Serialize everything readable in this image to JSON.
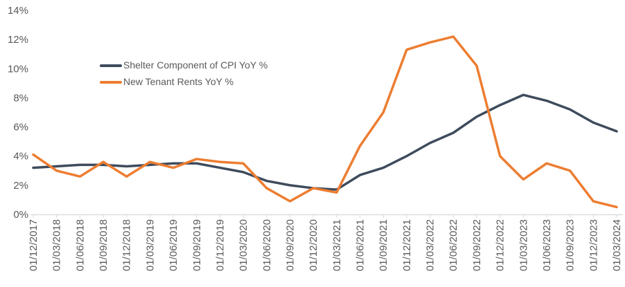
{
  "chart_data": {
    "type": "line",
    "title": "",
    "xlabel": "",
    "ylabel": "",
    "grid": false,
    "legend_position": "inside-upper-left",
    "categories": [
      "01/12/2017",
      "01/03/2018",
      "01/06/2018",
      "01/09/2018",
      "01/12/2018",
      "01/03/2019",
      "01/06/2019",
      "01/09/2019",
      "01/12/2019",
      "01/03/2020",
      "01/06/2020",
      "01/09/2020",
      "01/12/2020",
      "01/03/2021",
      "01/06/2021",
      "01/09/2021",
      "01/12/2021",
      "01/03/2022",
      "01/06/2022",
      "01/09/2022",
      "01/12/2022",
      "01/03/2023",
      "01/06/2023",
      "01/09/2023",
      "01/12/2023",
      "01/03/2024"
    ],
    "series": [
      {
        "name": "Shelter Component of CPI YoY %",
        "color": "#3E4B5C",
        "values": [
          3.2,
          3.3,
          3.4,
          3.4,
          3.3,
          3.4,
          3.5,
          3.5,
          3.2,
          2.9,
          2.3,
          2.0,
          1.8,
          1.7,
          2.7,
          3.2,
          4.0,
          4.9,
          5.6,
          6.7,
          7.5,
          8.2,
          7.8,
          7.2,
          6.3,
          5.7
        ]
      },
      {
        "name": "New Tenant Rents YoY %",
        "color": "#ED7D31",
        "values": [
          4.1,
          3.0,
          2.6,
          3.6,
          2.6,
          3.6,
          3.2,
          3.8,
          3.6,
          3.5,
          1.8,
          0.9,
          1.8,
          1.5,
          4.7,
          7.0,
          11.3,
          11.8,
          12.2,
          10.2,
          4.0,
          2.4,
          3.5,
          3.0,
          0.9,
          0.5
        ]
      }
    ],
    "y_axis": {
      "min": 0,
      "max": 14,
      "tick_labels": [
        "0%",
        "2%",
        "4%",
        "6%",
        "8%",
        "10%",
        "12%",
        "14%"
      ]
    },
    "colors": {
      "axis_line": "#D9D9D9",
      "tick_mark": "#D9D9D9",
      "tick_label": "#595959",
      "legend_text": "#595959",
      "background": "#FFFFFF"
    }
  }
}
